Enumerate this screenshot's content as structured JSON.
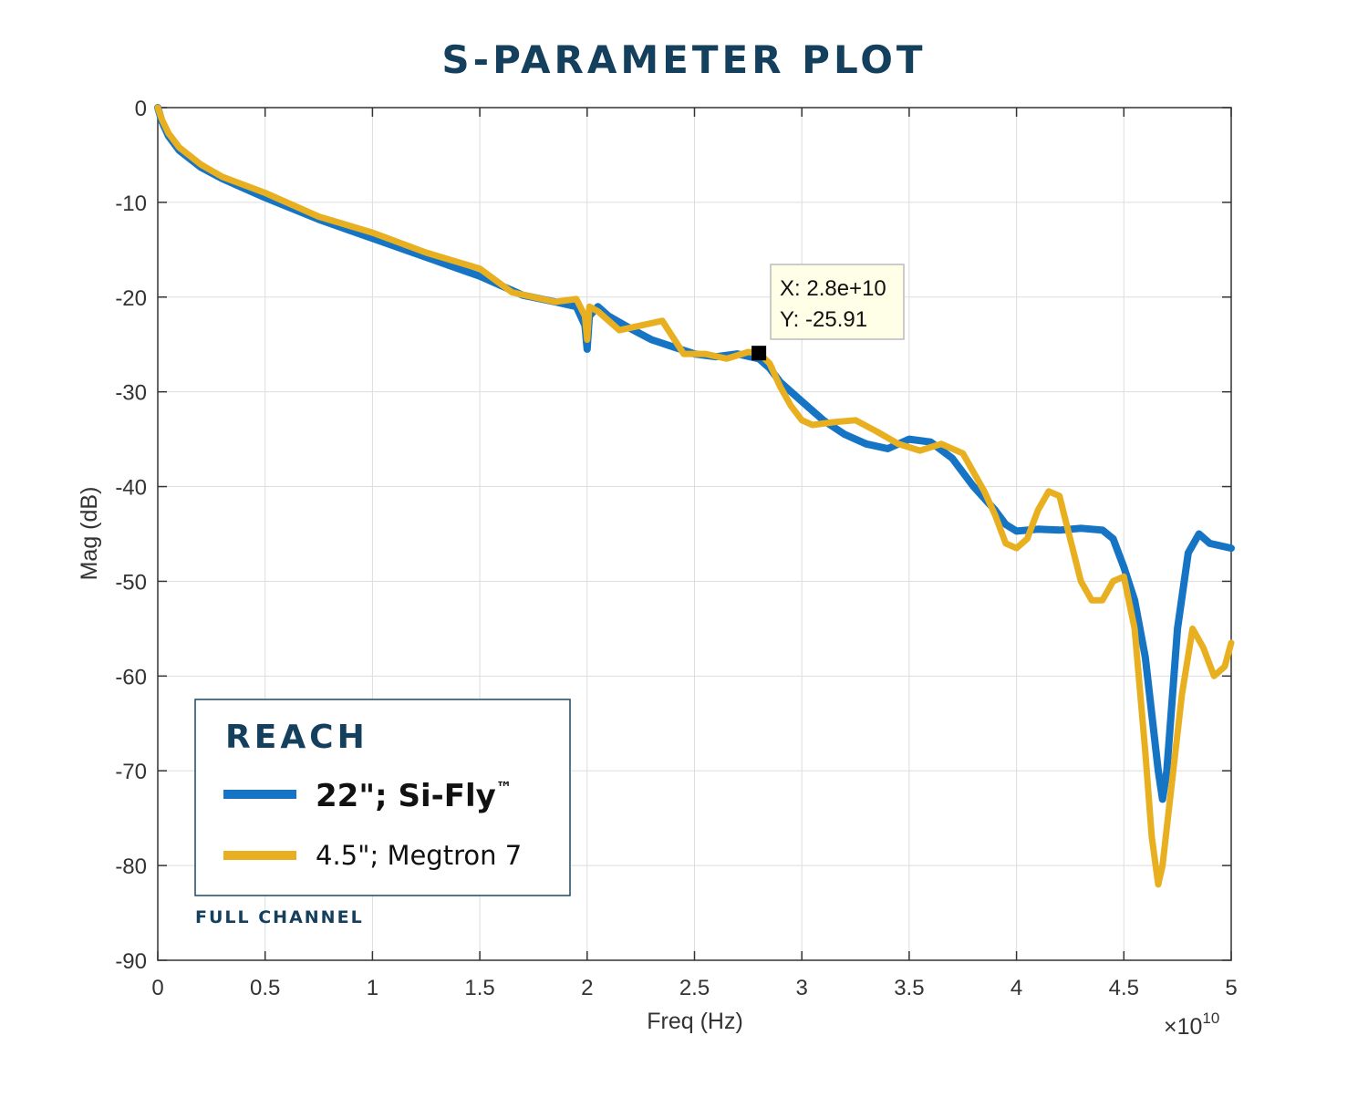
{
  "colors": {
    "series1": "#1574c4",
    "series2": "#e8b020",
    "title": "#14405e",
    "grid": "#dddddd",
    "tooltip_bg": "#ffffe8"
  },
  "chart_data": {
    "type": "line",
    "title": "S-PARAMETER PLOT",
    "xlabel": "Freq (Hz)",
    "ylabel": "Mag (dB)",
    "x_multiplier": "×10",
    "x_exponent": "10",
    "xlim": [
      0,
      5
    ],
    "ylim": [
      -90,
      0
    ],
    "xticks": [
      0,
      0.5,
      1,
      1.5,
      2,
      2.5,
      3,
      3.5,
      4,
      4.5,
      5
    ],
    "yticks": [
      0,
      -10,
      -20,
      -30,
      -40,
      -50,
      -60,
      -70,
      -80,
      -90
    ],
    "xtick_labels": [
      "0",
      "0.5",
      "1",
      "1.5",
      "2",
      "2.5",
      "3",
      "3.5",
      "4",
      "4.5",
      "5"
    ],
    "ytick_labels": [
      "0",
      "-10",
      "-20",
      "-30",
      "-40",
      "-50",
      "-60",
      "-70",
      "-80",
      "-90"
    ],
    "grid": true,
    "legend": {
      "heading": "REACH",
      "caption": "FULL CHANNEL",
      "position": "bottom-left"
    },
    "series": [
      {
        "name": "22\"; Si-Fly",
        "trademark": "™",
        "x": [
          0,
          0.02,
          0.05,
          0.1,
          0.2,
          0.3,
          0.5,
          0.75,
          1.0,
          1.25,
          1.5,
          1.7,
          1.85,
          1.95,
          1.99,
          2.0,
          2.01,
          2.05,
          2.1,
          2.2,
          2.3,
          2.5,
          2.6,
          2.7,
          2.8,
          2.85,
          2.9,
          3.0,
          3.1,
          3.2,
          3.3,
          3.4,
          3.5,
          3.6,
          3.7,
          3.8,
          3.9,
          3.95,
          4.0,
          4.1,
          4.2,
          4.3,
          4.4,
          4.45,
          4.5,
          4.55,
          4.6,
          4.63,
          4.66,
          4.68,
          4.7,
          4.72,
          4.75,
          4.8,
          4.85,
          4.9,
          5.0
        ],
        "y": [
          0,
          -1.5,
          -3,
          -4.5,
          -6.3,
          -7.5,
          -9.5,
          -11.8,
          -13.8,
          -15.8,
          -17.8,
          -19.8,
          -20.5,
          -21,
          -23,
          -25.5,
          -22,
          -21,
          -22,
          -23.3,
          -24.5,
          -26,
          -26.3,
          -26,
          -26.5,
          -27.5,
          -29,
          -31,
          -33,
          -34.5,
          -35.5,
          -36,
          -35,
          -35.3,
          -37,
          -40,
          -42.5,
          -44,
          -44.7,
          -44.5,
          -44.6,
          -44.4,
          -44.6,
          -45.5,
          -48.5,
          -52,
          -58,
          -64,
          -70,
          -73,
          -70,
          -64,
          -55,
          -47,
          -45,
          -46,
          -46.5
        ]
      },
      {
        "name": "4.5\"; Megtron 7",
        "x": [
          0,
          0.02,
          0.05,
          0.1,
          0.2,
          0.3,
          0.5,
          0.75,
          1.0,
          1.25,
          1.5,
          1.65,
          1.75,
          1.85,
          1.95,
          1.99,
          2.0,
          2.01,
          2.05,
          2.15,
          2.25,
          2.35,
          2.45,
          2.55,
          2.65,
          2.75,
          2.8,
          2.85,
          2.9,
          2.95,
          3.0,
          3.05,
          3.15,
          3.25,
          3.35,
          3.45,
          3.55,
          3.65,
          3.75,
          3.85,
          3.9,
          3.95,
          4.0,
          4.05,
          4.1,
          4.15,
          4.2,
          4.25,
          4.3,
          4.35,
          4.4,
          4.45,
          4.5,
          4.55,
          4.6,
          4.63,
          4.66,
          4.68,
          4.72,
          4.77,
          4.82,
          4.87,
          4.92,
          4.97,
          5.0
        ],
        "y": [
          0,
          -1.3,
          -2.7,
          -4.2,
          -6,
          -7.3,
          -9,
          -11.5,
          -13.2,
          -15.3,
          -17,
          -19.5,
          -20,
          -20.5,
          -20.2,
          -22,
          -24.5,
          -21,
          -21.5,
          -23.5,
          -23,
          -22.5,
          -26,
          -26,
          -26.5,
          -25.8,
          -25.9,
          -27,
          -29.5,
          -31.5,
          -33,
          -33.5,
          -33.2,
          -33,
          -34.2,
          -35.5,
          -36.2,
          -35.5,
          -36.5,
          -40.5,
          -43,
          -46,
          -46.5,
          -45.5,
          -42.5,
          -40.5,
          -41,
          -45.5,
          -50,
          -52,
          -52,
          -50,
          -49.5,
          -55,
          -68,
          -77,
          -82,
          -80,
          -72,
          -62,
          -55,
          -57,
          -60,
          -59,
          -56.5
        ]
      }
    ],
    "annotation": {
      "x": 2.8,
      "y": -25.91,
      "text_x": "X: 2.8e+10",
      "text_y": "Y: -25.91"
    }
  }
}
